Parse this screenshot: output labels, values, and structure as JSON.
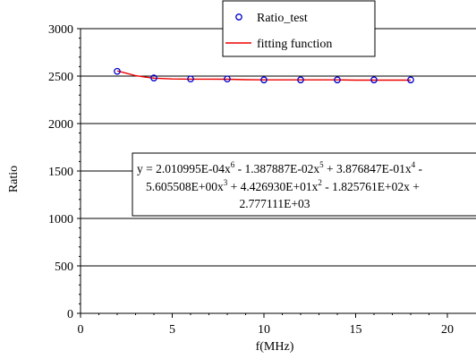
{
  "chart_data": {
    "type": "scatter",
    "xlabel": "f(MHz)",
    "ylabel": "Ratio",
    "xlim": [
      0,
      20
    ],
    "ylim": [
      0,
      3000
    ],
    "x_ticks": [
      "0",
      "5",
      "10",
      "15",
      "20"
    ],
    "y_ticks": [
      "0",
      "500",
      "1000",
      "1500",
      "2000",
      "2500",
      "3000"
    ],
    "grid": "horizontal",
    "legend_position": "top-center",
    "series": [
      {
        "name": "Ratio_test",
        "kind": "markers",
        "marker": "open-circle",
        "color": "#0000cc",
        "x": [
          2,
          4,
          6,
          8,
          10,
          12,
          14,
          16,
          18
        ],
        "y": [
          2550,
          2480,
          2470,
          2470,
          2460,
          2460,
          2460,
          2460,
          2460
        ]
      },
      {
        "name": "fitting function",
        "kind": "line",
        "color": "#ee0000",
        "x": [
          2,
          2.5,
          3,
          3.5,
          4,
          5,
          6,
          7,
          8,
          9,
          10,
          11,
          12,
          13,
          14,
          15,
          16,
          17,
          18
        ],
        "y": [
          2555,
          2530,
          2505,
          2490,
          2478,
          2470,
          2468,
          2468,
          2467,
          2462,
          2460,
          2460,
          2460,
          2460,
          2460,
          2458,
          2458,
          2458,
          2458
        ]
      }
    ],
    "annotation": {
      "line1": {
        "t1": "y = 2.010995E-04x",
        "e1": "6",
        "t2": " - 1.387887E-02x",
        "e2": "5",
        "t3": " + 3.876847E-01x",
        "e3": "4",
        "t4": " -"
      },
      "line2": {
        "t1": "5.605508E+00x",
        "e1": "3",
        "t2": " + 4.426930E+01x",
        "e2": "2",
        "t3": " - 1.825761E+02x +"
      },
      "line3": "2.777111E+03"
    }
  }
}
